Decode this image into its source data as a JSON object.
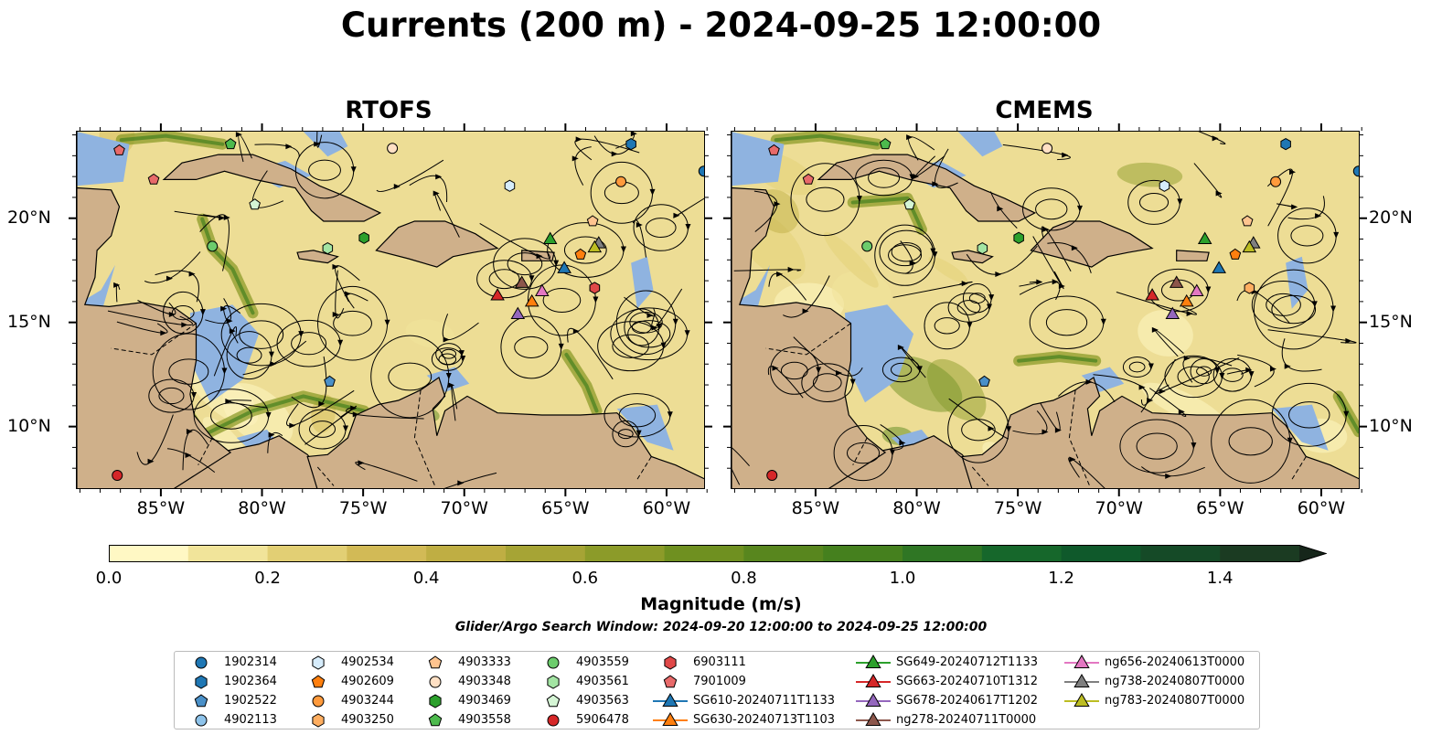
{
  "title": "Currents (200 m) - 2024-09-25 12:00:00",
  "panels": [
    {
      "title": "RTOFS"
    },
    {
      "title": "CMEMS"
    }
  ],
  "x_ticks": [
    "85°W",
    "80°W",
    "75°W",
    "70°W",
    "65°W",
    "60°W"
  ],
  "y_ticks": [
    "20°N",
    "15°N",
    "10°N"
  ],
  "colorbar": {
    "label": "Magnitude (m/s)",
    "ticks": [
      "0.0",
      "0.2",
      "0.4",
      "0.6",
      "0.8",
      "1.0",
      "1.2",
      "1.4"
    ],
    "range": [
      0,
      1.5
    ],
    "colors": [
      "#fff8c4",
      "#f1e49a",
      "#e2cf74",
      "#d2ba56",
      "#bfae43",
      "#a6a435",
      "#8c9b29",
      "#6f9020",
      "#58861e",
      "#45801e",
      "#2f7624",
      "#16672b",
      "#0f592b",
      "#154a27",
      "#1b3b22"
    ]
  },
  "search_window": "Glider/Argo Search Window: 2024-09-20 12:00:00 to 2024-09-25 12:00:00",
  "legend": [
    {
      "label": "1902314",
      "marker": "circle",
      "color": "#1f77b4"
    },
    {
      "label": "1902364",
      "marker": "hexagon",
      "color": "#1f77b4"
    },
    {
      "label": "1902522",
      "marker": "pentagon",
      "color": "#4a90c8"
    },
    {
      "label": "4902113",
      "marker": "circle",
      "color": "#8ec3ea"
    },
    {
      "label": "4902534",
      "marker": "hexagon",
      "color": "#d6ecfb"
    },
    {
      "label": "4902609",
      "marker": "pentagon",
      "color": "#ff7f0e"
    },
    {
      "label": "4903244",
      "marker": "circle",
      "color": "#ff9a3c"
    },
    {
      "label": "4903250",
      "marker": "hexagon",
      "color": "#ffae60"
    },
    {
      "label": "4903333",
      "marker": "pentagon",
      "color": "#ffc48f"
    },
    {
      "label": "4903348",
      "marker": "circle",
      "color": "#ffe0c4"
    },
    {
      "label": "4903469",
      "marker": "hexagon",
      "color": "#2ca02c"
    },
    {
      "label": "4903558",
      "marker": "pentagon",
      "color": "#4dba4d"
    },
    {
      "label": "4903559",
      "marker": "circle",
      "color": "#6ccc6c"
    },
    {
      "label": "4903561",
      "marker": "hexagon",
      "color": "#a3e4a3"
    },
    {
      "label": "4903563",
      "marker": "pentagon",
      "color": "#d5f5d5"
    },
    {
      "label": "5906478",
      "marker": "circle",
      "color": "#d62728"
    },
    {
      "label": "6903111",
      "marker": "hexagon",
      "color": "#e04848"
    },
    {
      "label": "7901009",
      "marker": "pentagon",
      "color": "#e86a6a"
    },
    {
      "label": "SG610-20240711T1133",
      "marker": "triangle",
      "color": "#1f77b4"
    },
    {
      "label": "SG630-20240713T1103",
      "marker": "triangle",
      "color": "#ff7f0e"
    },
    {
      "label": "SG649-20240712T1133",
      "marker": "triangle",
      "color": "#2ca02c"
    },
    {
      "label": "SG663-20240710T1312",
      "marker": "triangle",
      "color": "#d62728"
    },
    {
      "label": "SG678-20240617T1202",
      "marker": "triangle",
      "color": "#9467bd"
    },
    {
      "label": "ng278-20240711T0000",
      "marker": "triangle",
      "color": "#8c564b"
    },
    {
      "label": "ng656-20240613T0000",
      "marker": "triangle",
      "color": "#e377c2"
    },
    {
      "label": "ng738-20240807T0000",
      "marker": "triangle",
      "color": "#7f7f7f"
    },
    {
      "label": "ng783-20240807T0000",
      "marker": "triangle",
      "color": "#bcbd22"
    }
  ],
  "markers_rtofs": [
    {
      "id": "1902314",
      "lon": -58.2,
      "lat": 22.3
    },
    {
      "id": "1902364",
      "lon": -61.8,
      "lat": 23.6
    },
    {
      "id": "1902522",
      "lon": -76.7,
      "lat": 12.2
    },
    {
      "id": "4902534",
      "lon": -67.8,
      "lat": 21.6
    },
    {
      "id": "4902609",
      "lon": -64.3,
      "lat": 18.3
    },
    {
      "id": "4903244",
      "lon": -62.3,
      "lat": 21.8
    },
    {
      "id": "4903250",
      "lon": -63.6,
      "lat": 16.7
    },
    {
      "id": "4903333",
      "lon": -63.7,
      "lat": 19.9
    },
    {
      "id": "4903348",
      "lon": -73.6,
      "lat": 23.4
    },
    {
      "id": "4903469",
      "lon": -75.0,
      "lat": 19.1
    },
    {
      "id": "4903558",
      "lon": -81.6,
      "lat": 23.6
    },
    {
      "id": "4903559",
      "lon": -82.5,
      "lat": 18.7
    },
    {
      "id": "4903561",
      "lon": -76.8,
      "lat": 18.6
    },
    {
      "id": "4903563",
      "lon": -80.4,
      "lat": 20.7
    },
    {
      "id": "5906478",
      "lon": -87.2,
      "lat": 7.7
    },
    {
      "id": "6903111",
      "lon": -63.6,
      "lat": 16.7
    },
    {
      "id": "7901009",
      "lon": -87.1,
      "lat": 23.3
    },
    {
      "id": "7901009b",
      "lon": -85.4,
      "lat": 21.9
    },
    {
      "id": "SG610-20240711T1133",
      "lon": -65.1,
      "lat": 17.6
    },
    {
      "id": "SG630-20240713T1103",
      "lon": -66.7,
      "lat": 16.0
    },
    {
      "id": "SG649-20240712T1133",
      "lon": -65.8,
      "lat": 19.0
    },
    {
      "id": "SG663-20240710T1312",
      "lon": -68.4,
      "lat": 16.3
    },
    {
      "id": "SG678-20240617T1202",
      "lon": -67.4,
      "lat": 15.4
    },
    {
      "id": "ng278-20240711T0000",
      "lon": -67.2,
      "lat": 16.9
    },
    {
      "id": "ng656-20240613T0000",
      "lon": -66.2,
      "lat": 16.5
    },
    {
      "id": "ng738-20240807T0000",
      "lon": -63.4,
      "lat": 18.8
    },
    {
      "id": "ng783-20240807T0000",
      "lon": -63.6,
      "lat": 18.6
    }
  ],
  "markers_cmems": [
    {
      "id": "1902314",
      "lon": -58.2,
      "lat": 22.3
    },
    {
      "id": "1902364",
      "lon": -61.8,
      "lat": 23.6
    },
    {
      "id": "1902522",
      "lon": -76.7,
      "lat": 12.2
    },
    {
      "id": "4902534",
      "lon": -67.8,
      "lat": 21.6
    },
    {
      "id": "4902609",
      "lon": -64.3,
      "lat": 18.3
    },
    {
      "id": "4903244",
      "lon": -62.3,
      "lat": 21.8
    },
    {
      "id": "4903250",
      "lon": -63.6,
      "lat": 16.7
    },
    {
      "id": "4903333",
      "lon": -63.7,
      "lat": 19.9
    },
    {
      "id": "4903348",
      "lon": -73.6,
      "lat": 23.4
    },
    {
      "id": "4903469",
      "lon": -75.0,
      "lat": 19.1
    },
    {
      "id": "4903558",
      "lon": -81.6,
      "lat": 23.6
    },
    {
      "id": "4903559",
      "lon": -82.5,
      "lat": 18.7
    },
    {
      "id": "4903561",
      "lon": -76.8,
      "lat": 18.6
    },
    {
      "id": "4903563",
      "lon": -80.4,
      "lat": 20.7
    },
    {
      "id": "5906478",
      "lon": -87.2,
      "lat": 7.7
    },
    {
      "id": "7901009",
      "lon": -87.1,
      "lat": 23.3
    },
    {
      "id": "7901009b",
      "lon": -85.4,
      "lat": 21.9
    },
    {
      "id": "SG610-20240711T1133",
      "lon": -65.1,
      "lat": 17.6
    },
    {
      "id": "SG630-20240713T1103",
      "lon": -66.7,
      "lat": 16.0
    },
    {
      "id": "SG649-20240712T1133",
      "lon": -65.8,
      "lat": 19.0
    },
    {
      "id": "SG663-20240710T1312",
      "lon": -68.4,
      "lat": 16.3
    },
    {
      "id": "SG678-20240617T1202",
      "lon": -67.4,
      "lat": 15.4
    },
    {
      "id": "ng278-20240711T0000",
      "lon": -67.2,
      "lat": 16.9
    },
    {
      "id": "ng656-20240613T0000",
      "lon": -66.2,
      "lat": 16.5
    },
    {
      "id": "ng738-20240807T0000",
      "lon": -63.4,
      "lat": 18.8
    },
    {
      "id": "ng783-20240807T0000",
      "lon": -63.6,
      "lat": 18.6
    }
  ]
}
